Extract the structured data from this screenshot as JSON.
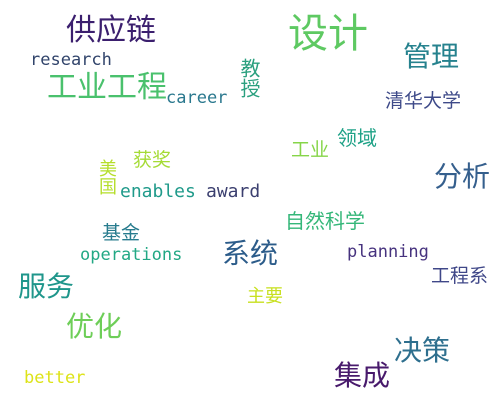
{
  "word_cloud": {
    "words": [
      {
        "text": "设计",
        "color": "#5ec962"
      },
      {
        "text": "供应链",
        "color": "#3b1f6e"
      },
      {
        "text": "管理",
        "color": "#26828e"
      },
      {
        "text": "research",
        "color": "#31446b"
      },
      {
        "text": "工业工程",
        "color": "#4ac16d"
      },
      {
        "text": "career",
        "color": "#2a788e"
      },
      {
        "text": "教授",
        "color": "#2ba07f"
      },
      {
        "text": "清华大学",
        "color": "#3e4a89"
      },
      {
        "text": "领域",
        "color": "#1fa287"
      },
      {
        "text": "工业",
        "color": "#86d549"
      },
      {
        "text": "获奖",
        "color": "#a5db36"
      },
      {
        "text": "美国",
        "color": "#b5de2b"
      },
      {
        "text": "分析",
        "color": "#355f8d"
      },
      {
        "text": "enables",
        "color": "#1f9a8a"
      },
      {
        "text": "award",
        "color": "#3b3f6f"
      },
      {
        "text": "自然科学",
        "color": "#35b779"
      },
      {
        "text": "基金",
        "color": "#287c8e"
      },
      {
        "text": "operations",
        "color": "#22a884"
      },
      {
        "text": "系统",
        "color": "#2c5c8a"
      },
      {
        "text": "planning",
        "color": "#46327e"
      },
      {
        "text": "工程系",
        "color": "#3f4788"
      },
      {
        "text": "服务",
        "color": "#1f968b"
      },
      {
        "text": "主要",
        "color": "#c8e020"
      },
      {
        "text": "优化",
        "color": "#6ece58"
      },
      {
        "text": "决策",
        "color": "#2e6f8e"
      },
      {
        "text": "集成",
        "color": "#481a6c"
      },
      {
        "text": "better",
        "color": "#dde318"
      }
    ]
  }
}
